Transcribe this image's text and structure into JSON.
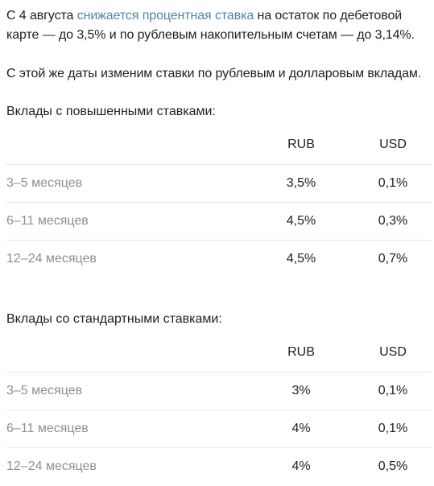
{
  "intro": {
    "pre": "С 4 августа ",
    "link": "снижается процентная ставка",
    "post": " на остаток по дебетовой карте — до 3,5% и по рублевым накопительным счетам — до 3,14%."
  },
  "second_paragraph": "С этой же даты изменим ставки по рублевым и долларовым вкладам.",
  "colors": {
    "link": "#4f86a7",
    "muted_text": "#8f8f8f",
    "divider": "#e6e6e6"
  },
  "tables": [
    {
      "caption": "Вклады с повышенными ставками:",
      "headers": {
        "term": "",
        "rub": "RUB",
        "usd": "USD"
      },
      "rows": [
        {
          "term": "3–5 месяцев",
          "rub": "3,5%",
          "usd": "0,1%"
        },
        {
          "term": "6–11 месяцев",
          "rub": "4,5%",
          "usd": "0,3%"
        },
        {
          "term": "12–24 месяцев",
          "rub": "4,5%",
          "usd": "0,7%"
        }
      ]
    },
    {
      "caption": "Вклады со стандартными ставками:",
      "headers": {
        "term": "",
        "rub": "RUB",
        "usd": "USD"
      },
      "rows": [
        {
          "term": "3–5 месяцев",
          "rub": "3%",
          "usd": "0,1%"
        },
        {
          "term": "6–11 месяцев",
          "rub": "4%",
          "usd": "0,1%"
        },
        {
          "term": "12–24 месяцев",
          "rub": "4%",
          "usd": "0,5%"
        }
      ]
    }
  ]
}
